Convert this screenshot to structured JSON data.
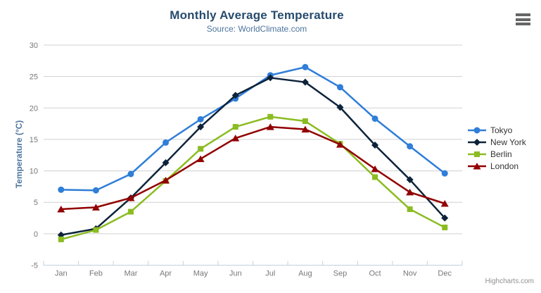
{
  "header": {
    "title": "Monthly Average Temperature",
    "subtitle": "Source: WorldClimate.com"
  },
  "y_axis": {
    "title": "Temperature (°C)",
    "ticks": [
      30,
      25,
      20,
      15,
      10,
      5,
      0,
      -5
    ]
  },
  "credit": {
    "text": "Highcharts.com"
  },
  "export_menu": {
    "icon": "hamburger-icon"
  },
  "colors": {
    "title": "#274b6d",
    "subtitle": "#4d759e",
    "axis_title": "#4d759e",
    "tick_label": "#777777",
    "grid_line": "#d0d0d0",
    "axis_line": "#c0d0e0",
    "legend_text": "#333333",
    "credit_text": "#909090",
    "menu_icon": "#666666",
    "background": "#ffffff"
  },
  "chart_data": {
    "type": "line",
    "title": "Monthly Average Temperature",
    "subtitle": "Source: WorldClimate.com",
    "xlabel": "",
    "ylabel": "Temperature (°C)",
    "categories": [
      "Jan",
      "Feb",
      "Mar",
      "Apr",
      "May",
      "Jun",
      "Jul",
      "Aug",
      "Sep",
      "Oct",
      "Nov",
      "Dec"
    ],
    "ylim": [
      -5,
      30
    ],
    "ytick_interval": 5,
    "grid": true,
    "legend_position": "right",
    "series": [
      {
        "name": "Tokyo",
        "color": "#2f7ed8",
        "marker": "circle",
        "values": [
          7.0,
          6.9,
          9.5,
          14.5,
          18.2,
          21.5,
          25.2,
          26.5,
          23.3,
          18.3,
          13.9,
          9.6
        ]
      },
      {
        "name": "New York",
        "color": "#0d233a",
        "marker": "diamond",
        "values": [
          -0.2,
          0.8,
          5.7,
          11.3,
          17.0,
          22.0,
          24.8,
          24.1,
          20.1,
          14.1,
          8.6,
          2.5
        ]
      },
      {
        "name": "Berlin",
        "color": "#8bbc21",
        "marker": "square",
        "values": [
          -0.9,
          0.6,
          3.5,
          8.4,
          13.5,
          17.0,
          18.6,
          17.9,
          14.3,
          9.0,
          3.9,
          1.0
        ]
      },
      {
        "name": "London",
        "color": "#910000",
        "marker": "triangle",
        "values": [
          3.9,
          4.2,
          5.7,
          8.5,
          11.9,
          15.2,
          17.0,
          16.6,
          14.2,
          10.3,
          6.6,
          4.8
        ]
      }
    ]
  }
}
